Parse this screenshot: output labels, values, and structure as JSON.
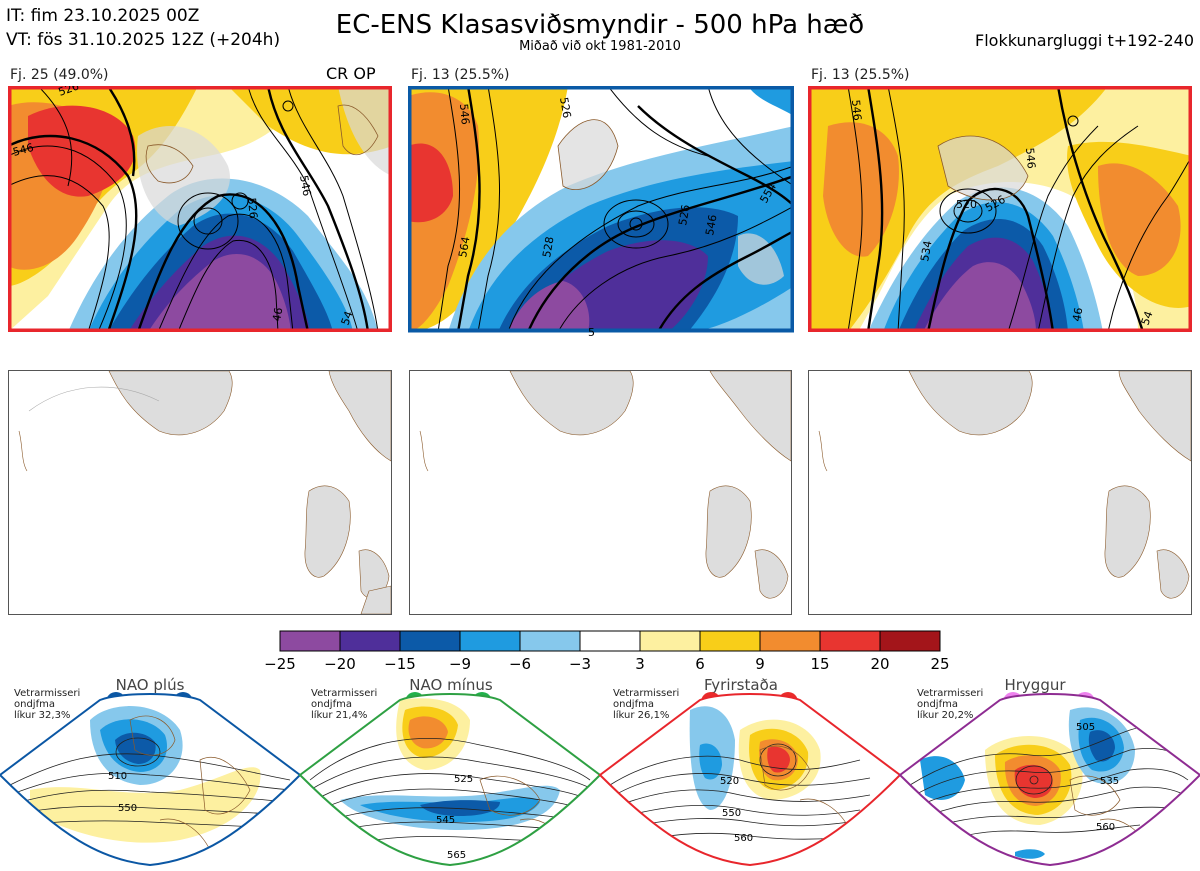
{
  "header": {
    "it": "IT: fim 23.10.2025 00Z",
    "vt": "VT: fös 31.10.2025 12Z  (+204h)",
    "title": "EC-ENS Klasasviðsmyndir - 500 hPa hæð",
    "subtitle": "Miðað við okt 1981-2010",
    "window": "Flokkunargluggi t+192-240"
  },
  "clusters": [
    {
      "label": "Fj. 25 (49.0%)",
      "tag": "CR OP",
      "frame_color": "#e8262c",
      "contours": [
        "526",
        "546",
        "546",
        "526",
        "46",
        "54"
      ]
    },
    {
      "label": "Fj. 13 (25.5%)",
      "tag": "",
      "frame_color": "#0a5aa6",
      "contours": [
        "546",
        "526",
        "564",
        "528",
        "526",
        "546",
        "554",
        "5"
      ]
    },
    {
      "label": "Fj. 13 (25.5%)",
      "tag": "",
      "frame_color": "#e8262c",
      "contours": [
        "546",
        "546",
        "520",
        "526",
        "534",
        "46",
        "54"
      ]
    }
  ],
  "colorbar": {
    "ticks": [
      "−25",
      "−20",
      "−15",
      "−9",
      "−6",
      "−3",
      "3",
      "6",
      "9",
      "15",
      "20",
      "25"
    ],
    "colors": [
      "#8d4aa0",
      "#4f2f9a",
      "#0c5aa8",
      "#1f9be0",
      "#86c8ec",
      "#ffffff",
      "#fdf0a0",
      "#f8ce19",
      "#f28c2f",
      "#e83530",
      "#a3151a"
    ]
  },
  "regimes": [
    {
      "title": "NAO plús",
      "info": [
        "Vetrarmisseri",
        "ondjfma",
        "líkur 32,3%"
      ],
      "color": "#0b57a4",
      "dot_color": "#0b57a4",
      "labels": [
        "510",
        "550"
      ]
    },
    {
      "title": "NAO mínus",
      "info": [
        "Vetrarmisseri",
        "ondjfma",
        "líkur 21,4%"
      ],
      "color": "#2ea043",
      "dot_color": "#22b14c",
      "labels": [
        "525",
        "545",
        "565"
      ]
    },
    {
      "title": "Fyrirstaða",
      "info": [
        "Vetrarmisseri",
        "ondjfma",
        "líkur 26,1%"
      ],
      "color": "#e8262c",
      "dot_color": "#ea2b2b",
      "labels": [
        "520",
        "550",
        "560"
      ]
    },
    {
      "title": "Hryggur",
      "info": [
        "Vetrarmisseri",
        "ondjfma",
        "líkur 20,2%"
      ],
      "color": "#8e2c92",
      "dot_color": "#ee82ee",
      "labels": [
        "505",
        "535",
        "560"
      ]
    }
  ]
}
